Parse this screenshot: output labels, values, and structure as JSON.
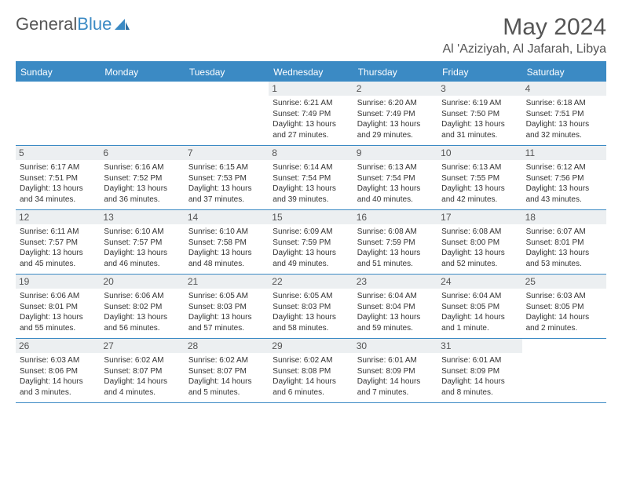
{
  "brand": {
    "part1": "General",
    "part2": "Blue"
  },
  "title": "May 2024",
  "location": "Al 'Aziziyah, Al Jafarah, Libya",
  "colors": {
    "accent": "#3b8ac4",
    "daynum_bg": "#eceff1",
    "text": "#333333",
    "muted": "#555555",
    "background": "#ffffff"
  },
  "day_headers": [
    "Sunday",
    "Monday",
    "Tuesday",
    "Wednesday",
    "Thursday",
    "Friday",
    "Saturday"
  ],
  "weeks": [
    [
      null,
      null,
      null,
      {
        "n": "1",
        "sr": "6:21 AM",
        "ss": "7:49 PM",
        "dl": "13 hours and 27 minutes."
      },
      {
        "n": "2",
        "sr": "6:20 AM",
        "ss": "7:49 PM",
        "dl": "13 hours and 29 minutes."
      },
      {
        "n": "3",
        "sr": "6:19 AM",
        "ss": "7:50 PM",
        "dl": "13 hours and 31 minutes."
      },
      {
        "n": "4",
        "sr": "6:18 AM",
        "ss": "7:51 PM",
        "dl": "13 hours and 32 minutes."
      }
    ],
    [
      {
        "n": "5",
        "sr": "6:17 AM",
        "ss": "7:51 PM",
        "dl": "13 hours and 34 minutes."
      },
      {
        "n": "6",
        "sr": "6:16 AM",
        "ss": "7:52 PM",
        "dl": "13 hours and 36 minutes."
      },
      {
        "n": "7",
        "sr": "6:15 AM",
        "ss": "7:53 PM",
        "dl": "13 hours and 37 minutes."
      },
      {
        "n": "8",
        "sr": "6:14 AM",
        "ss": "7:54 PM",
        "dl": "13 hours and 39 minutes."
      },
      {
        "n": "9",
        "sr": "6:13 AM",
        "ss": "7:54 PM",
        "dl": "13 hours and 40 minutes."
      },
      {
        "n": "10",
        "sr": "6:13 AM",
        "ss": "7:55 PM",
        "dl": "13 hours and 42 minutes."
      },
      {
        "n": "11",
        "sr": "6:12 AM",
        "ss": "7:56 PM",
        "dl": "13 hours and 43 minutes."
      }
    ],
    [
      {
        "n": "12",
        "sr": "6:11 AM",
        "ss": "7:57 PM",
        "dl": "13 hours and 45 minutes."
      },
      {
        "n": "13",
        "sr": "6:10 AM",
        "ss": "7:57 PM",
        "dl": "13 hours and 46 minutes."
      },
      {
        "n": "14",
        "sr": "6:10 AM",
        "ss": "7:58 PM",
        "dl": "13 hours and 48 minutes."
      },
      {
        "n": "15",
        "sr": "6:09 AM",
        "ss": "7:59 PM",
        "dl": "13 hours and 49 minutes."
      },
      {
        "n": "16",
        "sr": "6:08 AM",
        "ss": "7:59 PM",
        "dl": "13 hours and 51 minutes."
      },
      {
        "n": "17",
        "sr": "6:08 AM",
        "ss": "8:00 PM",
        "dl": "13 hours and 52 minutes."
      },
      {
        "n": "18",
        "sr": "6:07 AM",
        "ss": "8:01 PM",
        "dl": "13 hours and 53 minutes."
      }
    ],
    [
      {
        "n": "19",
        "sr": "6:06 AM",
        "ss": "8:01 PM",
        "dl": "13 hours and 55 minutes."
      },
      {
        "n": "20",
        "sr": "6:06 AM",
        "ss": "8:02 PM",
        "dl": "13 hours and 56 minutes."
      },
      {
        "n": "21",
        "sr": "6:05 AM",
        "ss": "8:03 PM",
        "dl": "13 hours and 57 minutes."
      },
      {
        "n": "22",
        "sr": "6:05 AM",
        "ss": "8:03 PM",
        "dl": "13 hours and 58 minutes."
      },
      {
        "n": "23",
        "sr": "6:04 AM",
        "ss": "8:04 PM",
        "dl": "13 hours and 59 minutes."
      },
      {
        "n": "24",
        "sr": "6:04 AM",
        "ss": "8:05 PM",
        "dl": "14 hours and 1 minute."
      },
      {
        "n": "25",
        "sr": "6:03 AM",
        "ss": "8:05 PM",
        "dl": "14 hours and 2 minutes."
      }
    ],
    [
      {
        "n": "26",
        "sr": "6:03 AM",
        "ss": "8:06 PM",
        "dl": "14 hours and 3 minutes."
      },
      {
        "n": "27",
        "sr": "6:02 AM",
        "ss": "8:07 PM",
        "dl": "14 hours and 4 minutes."
      },
      {
        "n": "28",
        "sr": "6:02 AM",
        "ss": "8:07 PM",
        "dl": "14 hours and 5 minutes."
      },
      {
        "n": "29",
        "sr": "6:02 AM",
        "ss": "8:08 PM",
        "dl": "14 hours and 6 minutes."
      },
      {
        "n": "30",
        "sr": "6:01 AM",
        "ss": "8:09 PM",
        "dl": "14 hours and 7 minutes."
      },
      {
        "n": "31",
        "sr": "6:01 AM",
        "ss": "8:09 PM",
        "dl": "14 hours and 8 minutes."
      },
      null
    ]
  ],
  "labels": {
    "sunrise": "Sunrise: ",
    "sunset": "Sunset: ",
    "daylight": "Daylight: "
  }
}
